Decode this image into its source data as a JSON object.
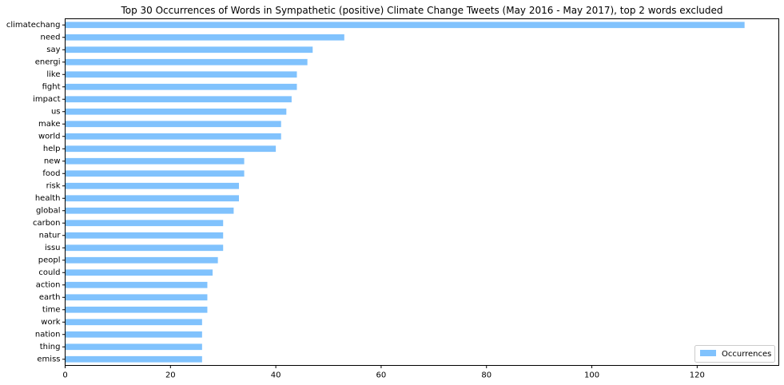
{
  "chart_data": {
    "type": "bar",
    "orientation": "horizontal",
    "title": "Top 30 Occurrences of Words in Sympathetic (positive) Climate Change Tweets (May 2016 - May 2017), top 2 words excluded",
    "xlabel": "",
    "ylabel": "",
    "xlim": [
      0,
      135.5
    ],
    "xticks": [
      0,
      20,
      40,
      60,
      80,
      100,
      120
    ],
    "grid": false,
    "legend_position": "lower-right",
    "bar_color": "#80c2fd",
    "categories": [
      "climatechang",
      "need",
      "say",
      "energi",
      "like",
      "fight",
      "impact",
      "us",
      "make",
      "world",
      "help",
      "new",
      "food",
      "risk",
      "health",
      "global",
      "carbon",
      "natur",
      "issu",
      "peopl",
      "could",
      "action",
      "earth",
      "time",
      "work",
      "nation",
      "thing",
      "emiss"
    ],
    "series": [
      {
        "name": "Occurrences",
        "values": [
          129,
          53,
          47,
          46,
          44,
          44,
          43,
          42,
          41,
          41,
          40,
          34,
          34,
          33,
          33,
          32,
          30,
          30,
          30,
          29,
          28,
          27,
          27,
          27,
          26,
          26,
          26,
          26
        ]
      }
    ]
  }
}
